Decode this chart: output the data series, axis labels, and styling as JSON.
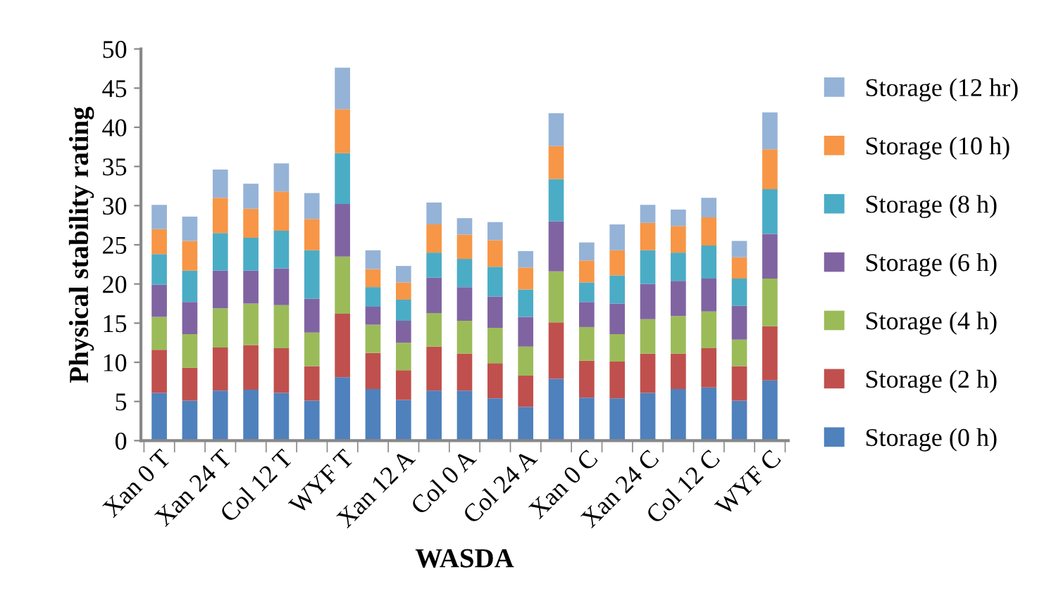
{
  "chart_data": {
    "type": "bar",
    "stacked": true,
    "xlabel": "WASDA",
    "ylabel": "Physical stability rating",
    "categories": [
      "Xan 0 T",
      null,
      "Xan 24 T",
      null,
      "Col 12 T",
      null,
      "WYF T",
      null,
      "Xan 12 A",
      null,
      "Col 0 A",
      null,
      "Col 24 A",
      null,
      "Xan 0 C",
      null,
      "Xan 24 C",
      null,
      "Col 12 C",
      null,
      "WYF C"
    ],
    "ylim": [
      0,
      50
    ],
    "yticks": [
      0,
      5,
      10,
      15,
      20,
      25,
      30,
      35,
      40,
      45,
      50
    ],
    "grid": false,
    "legend": "right",
    "series": [
      {
        "name": "Storage (0 h)",
        "color": "#4f81bd",
        "values": [
          6.1,
          5.1,
          6.4,
          6.5,
          6.1,
          5.1,
          8.1,
          6.6,
          5.2,
          6.4,
          6.4,
          5.4,
          4.3,
          7.9,
          5.5,
          5.4,
          6.1,
          6.6,
          6.8,
          5.1,
          7.7
        ]
      },
      {
        "name": "Storage (2 h)",
        "color": "#c0504d",
        "values": [
          5.5,
          4.2,
          5.5,
          5.7,
          5.7,
          4.4,
          8.1,
          4.6,
          3.8,
          5.6,
          4.7,
          4.5,
          4.0,
          7.2,
          4.7,
          4.7,
          5.0,
          4.5,
          5.0,
          4.4,
          6.9
        ]
      },
      {
        "name": "Storage (4 h)",
        "color": "#9bbb59",
        "values": [
          4.2,
          4.3,
          5.0,
          5.3,
          5.5,
          4.3,
          7.3,
          3.6,
          3.5,
          4.3,
          4.2,
          4.5,
          3.7,
          6.5,
          4.3,
          3.5,
          4.4,
          4.8,
          4.7,
          3.4,
          6.1
        ]
      },
      {
        "name": "Storage (6 h)",
        "color": "#8064a2",
        "values": [
          4.1,
          4.1,
          4.8,
          4.2,
          4.7,
          4.3,
          6.7,
          2.3,
          2.8,
          4.5,
          4.3,
          4.0,
          3.8,
          6.4,
          3.2,
          3.9,
          4.5,
          4.5,
          4.2,
          4.3,
          5.7
        ]
      },
      {
        "name": "Storage (8 h)",
        "color": "#4bacc6",
        "values": [
          3.9,
          4.0,
          4.8,
          4.2,
          4.8,
          6.2,
          6.5,
          2.5,
          2.7,
          3.2,
          3.6,
          3.8,
          3.5,
          5.4,
          2.5,
          3.6,
          4.3,
          3.6,
          4.2,
          3.5,
          5.7
        ]
      },
      {
        "name": "Storage (10 h)",
        "color": "#f79646",
        "values": [
          3.2,
          3.8,
          4.5,
          3.7,
          5.0,
          4.0,
          5.6,
          2.3,
          2.2,
          3.6,
          3.1,
          3.4,
          2.8,
          4.2,
          2.8,
          3.2,
          3.5,
          3.4,
          3.6,
          2.7,
          5.1
        ]
      },
      {
        "name": "Storage (12 hr)",
        "color": "#95b3d7",
        "values": [
          3.1,
          3.1,
          3.6,
          3.2,
          3.6,
          3.3,
          5.3,
          2.4,
          2.1,
          2.8,
          2.1,
          2.3,
          2.1,
          4.2,
          2.3,
          3.3,
          2.3,
          2.1,
          2.5,
          2.1,
          4.7
        ]
      }
    ]
  }
}
